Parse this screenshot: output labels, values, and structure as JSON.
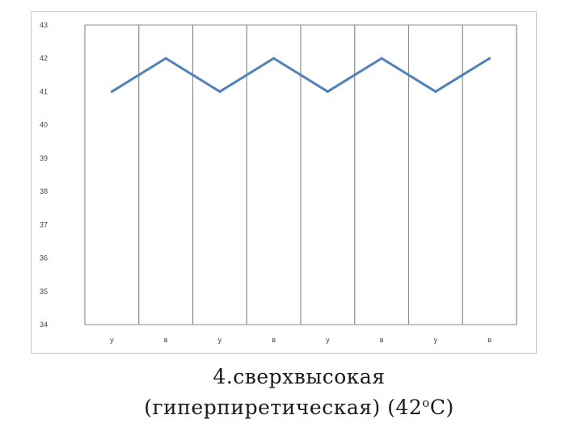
{
  "chart_data": {
    "type": "line",
    "title": "",
    "xlabel": "",
    "ylabel": "",
    "categories": [
      "у",
      "в",
      "у",
      "в",
      "у",
      "в",
      "у",
      "в"
    ],
    "values": [
      41,
      42,
      41,
      42,
      41,
      42,
      41,
      42
    ],
    "ylim": [
      34,
      43
    ],
    "yticks": [
      "34",
      "35",
      "36",
      "37",
      "38",
      "39",
      "40",
      "41",
      "42",
      "43"
    ],
    "grid": true,
    "line_color": "#4f81bd",
    "grid_color": "#8c8c8c"
  },
  "caption": {
    "line1": "4.сверхвысокая",
    "line2_pre": "(гиперпиретическая) (42",
    "degree": "о",
    "line2_post": "С)"
  }
}
